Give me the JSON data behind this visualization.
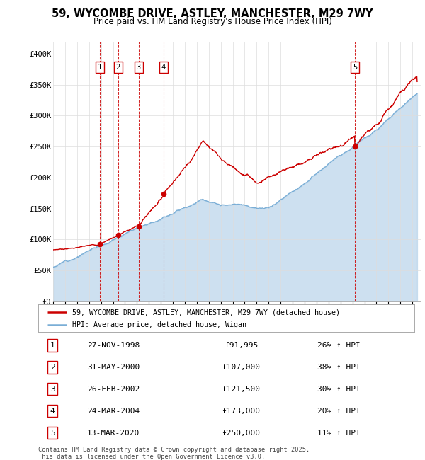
{
  "title": "59, WYCOMBE DRIVE, ASTLEY, MANCHESTER, M29 7WY",
  "subtitle": "Price paid vs. HM Land Registry's House Price Index (HPI)",
  "yticks": [
    0,
    50000,
    100000,
    150000,
    200000,
    250000,
    300000,
    350000,
    400000
  ],
  "ytick_labels": [
    "£0",
    "£50K",
    "£100K",
    "£150K",
    "£200K",
    "£250K",
    "£300K",
    "£350K",
    "£400K"
  ],
  "ylim": [
    0,
    420000
  ],
  "xlim_start": 1995.0,
  "xlim_end": 2025.7,
  "sale_color": "#cc0000",
  "hpi_color": "#7aaed6",
  "hpi_fill_color": "#b8d4ea",
  "legend_sale_label": "59, WYCOMBE DRIVE, ASTLEY, MANCHESTER, M29 7WY (detached house)",
  "legend_hpi_label": "HPI: Average price, detached house, Wigan",
  "transactions": [
    {
      "num": 1,
      "date": "27-NOV-1998",
      "date_dec": 1998.91,
      "price": 91995,
      "hpi_pct": "26% ↑ HPI"
    },
    {
      "num": 2,
      "date": "31-MAY-2000",
      "date_dec": 2000.42,
      "price": 107000,
      "hpi_pct": "38% ↑ HPI"
    },
    {
      "num": 3,
      "date": "26-FEB-2002",
      "date_dec": 2002.15,
      "price": 121500,
      "hpi_pct": "30% ↑ HPI"
    },
    {
      "num": 4,
      "date": "24-MAR-2004",
      "date_dec": 2004.23,
      "price": 173000,
      "hpi_pct": "20% ↑ HPI"
    },
    {
      "num": 5,
      "date": "13-MAR-2020",
      "date_dec": 2020.2,
      "price": 250000,
      "hpi_pct": "11% ↑ HPI"
    }
  ],
  "footer": "Contains HM Land Registry data © Crown copyright and database right 2025.\nThis data is licensed under the Open Government Licence v3.0.",
  "background_color": "#ffffff",
  "grid_color": "#dddddd"
}
